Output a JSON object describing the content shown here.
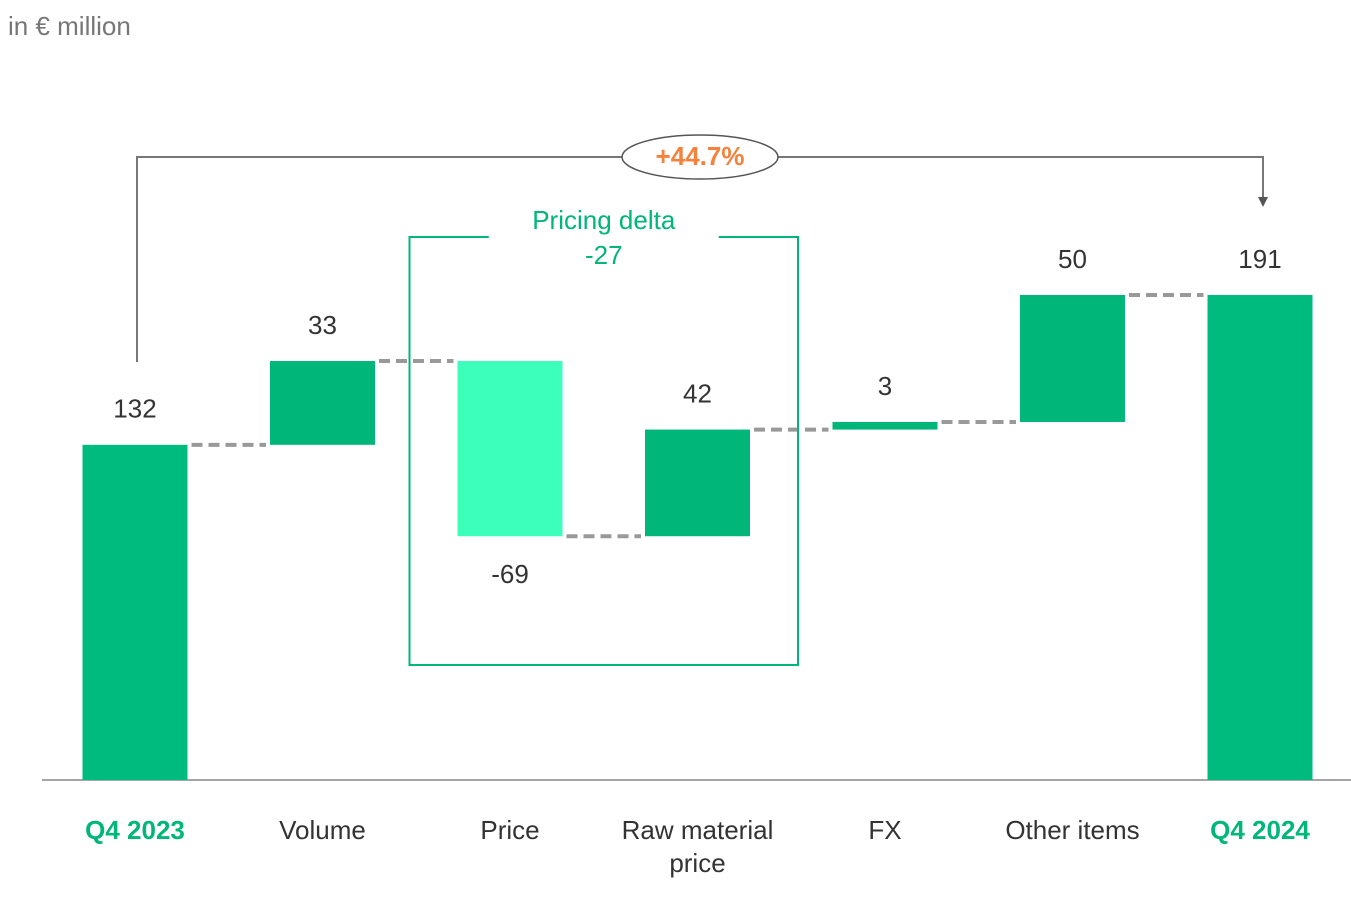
{
  "chart_data": {
    "type": "waterfall",
    "unit_label": "in € million",
    "categories": [
      "Q4 2023",
      "Volume",
      "Price",
      "Raw material price",
      "FX",
      "Other items",
      "Q4 2024"
    ],
    "values": [
      132,
      33,
      -69,
      42,
      3,
      50,
      191
    ],
    "is_total": [
      true,
      false,
      false,
      false,
      false,
      false,
      true
    ],
    "color_total": "#00bb7e",
    "color_increase": "#00b679",
    "color_decrease": "#3dffbc",
    "change_annotation": "+44.7%",
    "group_annotation": {
      "title": "Pricing delta",
      "value": -27
    }
  }
}
